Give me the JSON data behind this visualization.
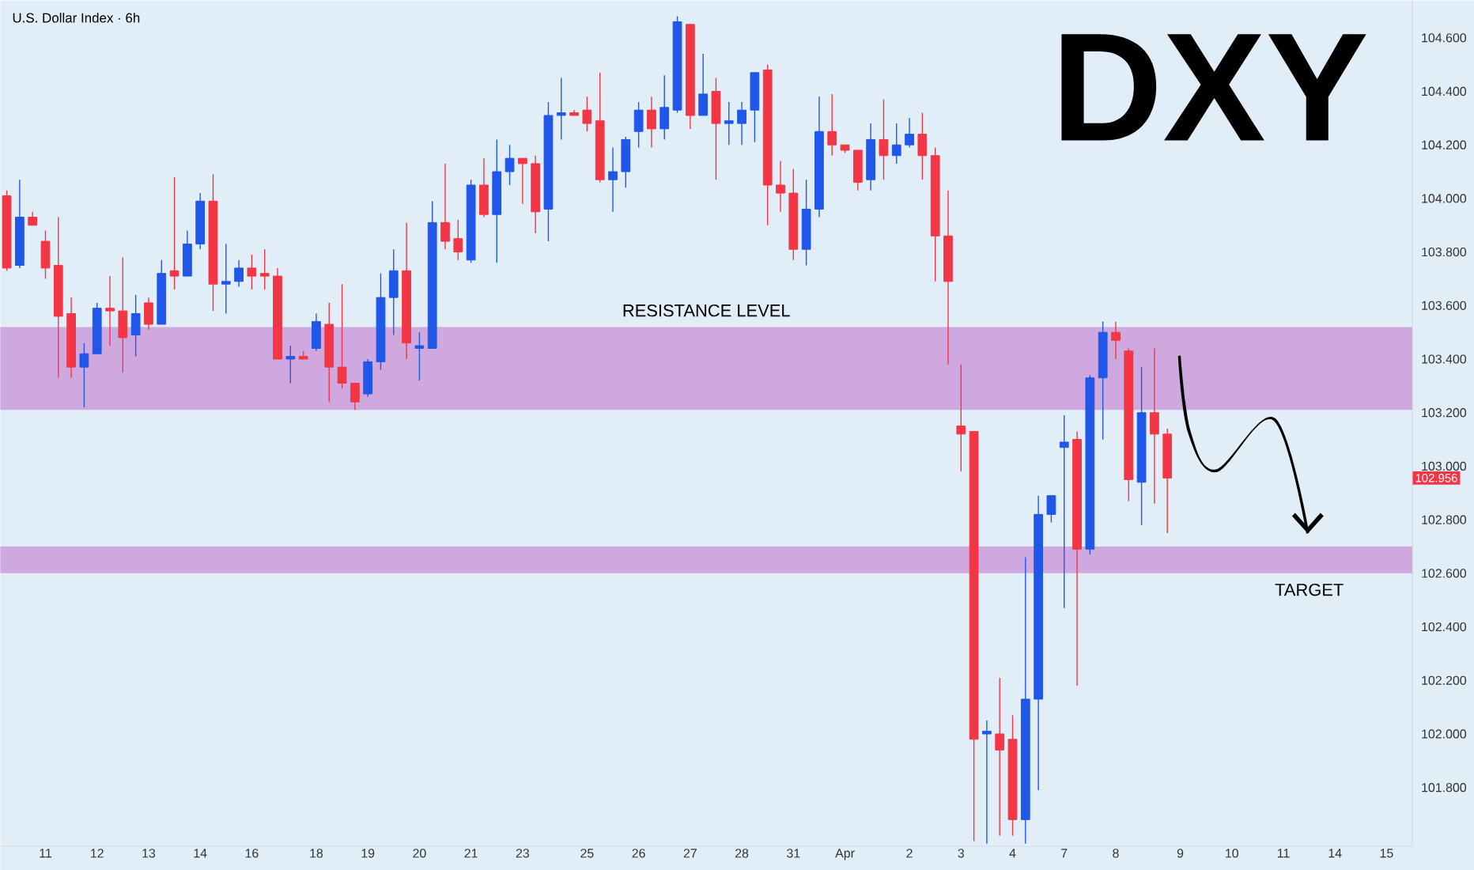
{
  "chart_data": {
    "type": "candlestick",
    "title": "DXY",
    "subtitle": "U.S. Dollar Index · 6h",
    "categories": [
      null,
      null,
      null,
      "11",
      null,
      null,
      null,
      "12",
      null,
      null,
      null,
      "13",
      null,
      null,
      null,
      "14",
      null,
      null,
      null,
      "16",
      null,
      null,
      null,
      null,
      "18",
      null,
      null,
      null,
      "19",
      null,
      null,
      null,
      "20",
      null,
      null,
      null,
      "21",
      null,
      null,
      null,
      "23",
      null,
      null,
      null,
      null,
      "25",
      null,
      null,
      null,
      "26",
      null,
      null,
      null,
      "27",
      null,
      null,
      null,
      "28",
      null,
      null,
      null,
      "31",
      null,
      null,
      null,
      "Apr",
      null,
      null,
      null,
      null,
      "2",
      null,
      null,
      null,
      "3",
      null,
      null,
      null,
      "4",
      null,
      null,
      null,
      "7",
      null,
      null,
      null,
      "8",
      null,
      null,
      null,
      null,
      "9",
      null,
      null,
      null,
      "10",
      null,
      null,
      null,
      "11",
      null,
      null,
      null,
      "14",
      null,
      null,
      null,
      "15"
    ],
    "ohlc": [
      [
        104.01,
        104.03,
        103.73,
        103.74
      ],
      [
        103.75,
        104.07,
        103.74,
        103.93
      ],
      [
        103.93,
        103.95,
        103.9,
        103.9
      ],
      [
        103.84,
        103.88,
        103.7,
        103.74
      ],
      [
        103.75,
        103.93,
        103.33,
        103.56
      ],
      [
        103.57,
        103.63,
        103.33,
        103.37
      ],
      [
        103.37,
        103.46,
        103.22,
        103.42
      ],
      [
        103.42,
        103.61,
        103.42,
        103.59
      ],
      [
        103.59,
        103.71,
        103.45,
        103.58
      ],
      [
        103.58,
        103.78,
        103.35,
        103.48
      ],
      [
        103.49,
        103.64,
        103.41,
        103.57
      ],
      [
        103.61,
        103.63,
        103.51,
        103.53
      ],
      [
        103.53,
        103.77,
        103.53,
        103.72
      ],
      [
        103.73,
        104.08,
        103.66,
        103.71
      ],
      [
        103.71,
        103.88,
        103.71,
        103.83
      ],
      [
        103.83,
        104.02,
        103.81,
        103.99
      ],
      [
        103.99,
        104.09,
        103.58,
        103.68
      ],
      [
        103.68,
        103.83,
        103.57,
        103.69
      ],
      [
        103.69,
        103.77,
        103.67,
        103.74
      ],
      [
        103.74,
        103.79,
        103.66,
        103.71
      ],
      [
        103.72,
        103.81,
        103.66,
        103.71
      ],
      [
        103.71,
        103.74,
        103.4,
        103.4
      ],
      [
        103.4,
        103.45,
        103.31,
        103.41
      ],
      [
        103.41,
        103.43,
        103.4,
        103.4
      ],
      [
        103.44,
        103.57,
        103.43,
        103.54
      ],
      [
        103.53,
        103.61,
        103.24,
        103.37
      ],
      [
        103.37,
        103.68,
        103.29,
        103.31
      ],
      [
        103.31,
        103.31,
        103.21,
        103.24
      ],
      [
        103.27,
        103.4,
        103.26,
        103.39
      ],
      [
        103.39,
        103.72,
        103.36,
        103.63
      ],
      [
        103.63,
        103.81,
        103.49,
        103.73
      ],
      [
        103.73,
        103.91,
        103.4,
        103.46
      ],
      [
        103.44,
        103.5,
        103.32,
        103.45
      ],
      [
        103.44,
        103.99,
        103.44,
        103.91
      ],
      [
        103.91,
        104.13,
        103.81,
        103.84
      ],
      [
        103.85,
        103.92,
        103.77,
        103.8
      ],
      [
        103.77,
        104.07,
        103.76,
        104.05
      ],
      [
        104.05,
        104.15,
        103.93,
        103.94
      ],
      [
        103.94,
        104.22,
        103.76,
        104.1
      ],
      [
        104.1,
        104.2,
        104.05,
        104.15
      ],
      [
        104.15,
        104.15,
        103.98,
        104.13
      ],
      [
        104.13,
        104.16,
        103.87,
        103.95
      ],
      [
        103.96,
        104.36,
        103.84,
        104.31
      ],
      [
        104.31,
        104.45,
        104.22,
        104.32
      ],
      [
        104.32,
        104.33,
        104.31,
        104.31
      ],
      [
        104.33,
        104.38,
        104.25,
        104.28
      ],
      [
        104.29,
        104.47,
        104.06,
        104.07
      ],
      [
        104.07,
        104.19,
        103.95,
        104.1
      ],
      [
        104.1,
        104.23,
        104.04,
        104.22
      ],
      [
        104.25,
        104.36,
        104.19,
        104.33
      ],
      [
        104.33,
        104.38,
        104.19,
        104.26
      ],
      [
        104.26,
        104.46,
        104.22,
        104.34
      ],
      [
        104.33,
        104.68,
        104.32,
        104.66
      ],
      [
        104.65,
        104.65,
        104.26,
        104.31
      ],
      [
        104.31,
        104.54,
        104.31,
        104.39
      ],
      [
        104.4,
        104.45,
        104.07,
        104.28
      ],
      [
        104.28,
        104.36,
        104.2,
        104.29
      ],
      [
        104.28,
        104.36,
        104.2,
        104.33
      ],
      [
        104.33,
        104.47,
        104.21,
        104.47
      ],
      [
        104.48,
        104.5,
        103.9,
        104.05
      ],
      [
        104.05,
        104.14,
        103.95,
        104.02
      ],
      [
        104.02,
        104.11,
        103.77,
        103.81
      ],
      [
        103.81,
        104.07,
        103.75,
        103.96
      ],
      [
        103.96,
        104.38,
        103.93,
        104.25
      ],
      [
        104.25,
        104.39,
        104.16,
        104.2
      ],
      [
        104.2,
        104.2,
        104.17,
        104.18
      ],
      [
        104.18,
        104.18,
        104.03,
        104.06
      ],
      [
        104.07,
        104.28,
        104.03,
        104.22
      ],
      [
        104.22,
        104.37,
        104.07,
        104.16
      ],
      [
        104.16,
        104.28,
        104.13,
        104.2
      ],
      [
        104.2,
        104.3,
        104.19,
        104.24
      ],
      [
        104.24,
        104.32,
        104.07,
        104.16
      ],
      [
        104.16,
        104.19,
        103.69,
        103.86
      ],
      [
        103.86,
        104.03,
        103.38,
        103.69
      ],
      [
        103.15,
        103.38,
        102.98,
        103.12
      ],
      [
        103.13,
        103.13,
        101.6,
        101.98
      ],
      [
        102.0,
        102.05,
        101.59,
        102.01
      ],
      [
        102.0,
        102.21,
        101.62,
        101.94
      ],
      [
        101.98,
        102.07,
        101.62,
        101.68
      ],
      [
        101.68,
        102.66,
        101.59,
        102.13
      ],
      [
        102.13,
        102.89,
        101.79,
        102.82
      ],
      [
        102.82,
        102.89,
        102.79,
        102.89
      ],
      [
        103.07,
        103.19,
        102.47,
        103.09
      ],
      [
        103.1,
        103.13,
        102.18,
        102.69
      ],
      [
        102.69,
        103.34,
        102.67,
        103.33
      ],
      [
        103.33,
        103.54,
        103.1,
        103.5
      ],
      [
        103.5,
        103.54,
        103.4,
        103.47
      ],
      [
        103.43,
        103.44,
        102.87,
        102.95
      ],
      [
        102.94,
        103.37,
        102.78,
        103.2
      ],
      [
        103.2,
        103.44,
        102.86,
        103.12
      ],
      [
        103.12,
        103.14,
        102.75,
        102.956
      ],
      null,
      null,
      null,
      null,
      null,
      null,
      null,
      null,
      null,
      null,
      null,
      null,
      null,
      null,
      null,
      null,
      null
    ],
    "colors": [
      "#f23645",
      "#2157e8",
      "#f23645",
      "#f23645",
      "#f23645",
      "#f23645",
      "#2157e8",
      "#2157e8",
      "#f23645",
      "#f23645",
      "#2157e8",
      "#f23645",
      "#2157e8",
      "#f23645",
      "#2157e8",
      "#2157e8",
      "#f23645",
      "#2157e8",
      "#2157e8",
      "#f23645",
      "#f23645",
      "#f23645",
      "#2157e8",
      "#f23645",
      "#2157e8",
      "#f23645",
      "#f23645",
      "#f23645",
      "#2157e8",
      "#2157e8",
      "#2157e8",
      "#f23645",
      "#2157e8",
      "#2157e8",
      "#f23645",
      "#f23645",
      "#2157e8",
      "#f23645",
      "#2157e8",
      "#2157e8",
      "#f23645",
      "#f23645",
      "#2157e8",
      "#2157e8",
      "#f23645",
      "#f23645",
      "#f23645",
      "#2157e8",
      "#2157e8",
      "#2157e8",
      "#f23645",
      "#2157e8",
      "#2157e8",
      "#f23645",
      "#2157e8",
      "#f23645",
      "#2157e8",
      "#2157e8",
      "#2157e8",
      "#f23645",
      "#f23645",
      "#f23645",
      "#2157e8",
      "#2157e8",
      "#f23645",
      "#f23645",
      "#f23645",
      "#2157e8",
      "#f23645",
      "#2157e8",
      "#2157e8",
      "#f23645",
      "#f23645",
      "#f23645",
      "#f23645",
      "#f23645",
      "#2157e8",
      "#f23645",
      "#f23645",
      "#2157e8",
      "#2157e8",
      "#2157e8",
      "#2157e8",
      "#f23645",
      "#2157e8",
      "#2157e8",
      "#f23645",
      "#f23645",
      "#2157e8",
      "#f23645",
      "#f23645",
      null,
      null,
      null,
      null,
      null,
      null,
      null,
      null,
      null,
      null,
      null,
      null,
      null,
      null,
      null,
      null,
      null
    ],
    "ylim": [
      101.58,
      104.74
    ],
    "yticks": [
      {
        "value": 101.8,
        "label": "101.800"
      },
      {
        "value": 102.0,
        "label": "102.000"
      },
      {
        "value": 102.2,
        "label": "102.200"
      },
      {
        "value": 102.4,
        "label": "102.400"
      },
      {
        "value": 102.6,
        "label": "102.600"
      },
      {
        "value": 102.8,
        "label": "102.800"
      },
      {
        "value": 103.0,
        "label": "103.000"
      },
      {
        "value": 103.2,
        "label": "103.200"
      },
      {
        "value": 103.4,
        "label": "103.400"
      },
      {
        "value": 103.6,
        "label": "103.600"
      },
      {
        "value": 103.8,
        "label": "103.800"
      },
      {
        "value": 104.0,
        "label": "104.000"
      },
      {
        "value": 104.2,
        "label": "104.200"
      },
      {
        "value": 104.4,
        "label": "104.400"
      },
      {
        "value": 104.6,
        "label": "104.600"
      }
    ],
    "bands": [
      {
        "axis": "y",
        "from": 103.21,
        "to": 103.52,
        "label": "RESISTANCE LEVEL",
        "color": "#cfa8e0"
      },
      {
        "axis": "y",
        "from": 102.6,
        "to": 102.7,
        "label": "TARGET",
        "color": "#cfa8e0"
      }
    ],
    "annotations": [
      "102.956"
    ],
    "grid": false
  }
}
